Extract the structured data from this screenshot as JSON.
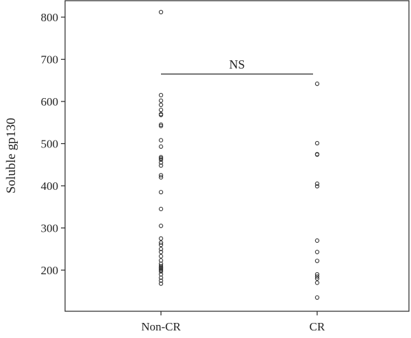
{
  "chart_data": {
    "type": "scatter",
    "title": "",
    "xlabel": "",
    "ylabel": "Soluble gp130",
    "categories": [
      "Non-CR",
      "CR"
    ],
    "ylim": [
      125,
      830
    ],
    "yticks": [
      200,
      300,
      400,
      500,
      600,
      700,
      800
    ],
    "grid": false,
    "legend": "none",
    "series": [
      {
        "category": "Non-CR",
        "values": [
          812,
          615,
          602,
          592,
          580,
          570,
          568,
          545,
          542,
          508,
          493,
          468,
          465,
          462,
          455,
          448,
          425,
          420,
          385,
          345,
          305,
          275,
          265,
          260,
          250,
          243,
          233,
          223,
          215,
          210,
          207,
          205,
          203,
          200,
          197,
          190,
          182,
          175,
          168
        ]
      },
      {
        "category": "CR",
        "values": [
          642,
          501,
          475,
          474,
          405,
          399,
          270,
          243,
          222,
          190,
          185,
          180,
          170,
          135
        ]
      }
    ],
    "annotation": {
      "text": "NS",
      "y": 665,
      "from": "Non-CR",
      "to": "CR"
    },
    "colors": {
      "marker": "#333333",
      "axis": "#222222"
    }
  }
}
